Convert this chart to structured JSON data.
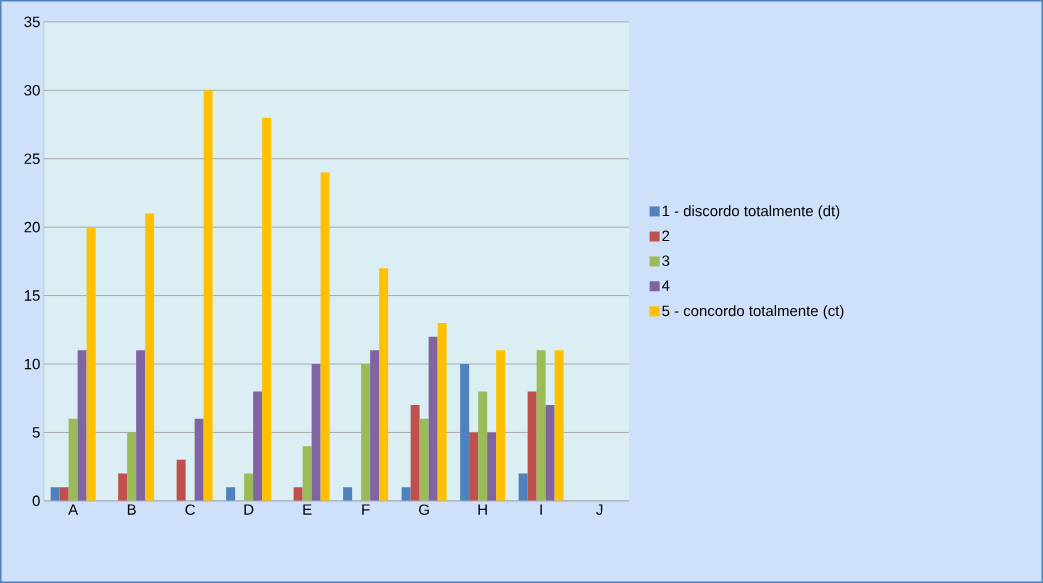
{
  "chart_data": {
    "type": "bar",
    "categories": [
      "A",
      "B",
      "C",
      "D",
      "E",
      "F",
      "G",
      "H",
      "I",
      "J"
    ],
    "series": [
      {
        "name": "1 - discordo totalmente (dt)",
        "color": "#4f81bd",
        "values": [
          1,
          0,
          0,
          1,
          0,
          1,
          1,
          10,
          2,
          0
        ]
      },
      {
        "name": "2",
        "color": "#c0504d",
        "values": [
          1,
          2,
          3,
          0,
          1,
          0,
          7,
          5,
          8,
          0
        ]
      },
      {
        "name": "3",
        "color": "#9bbb59",
        "values": [
          6,
          5,
          0,
          2,
          4,
          10,
          6,
          8,
          11,
          0
        ]
      },
      {
        "name": "4",
        "color": "#8064a2",
        "values": [
          11,
          11,
          6,
          8,
          10,
          11,
          12,
          5,
          7,
          0
        ]
      },
      {
        "name": "5 - concordo totalmente (ct)",
        "color": "#ffc000",
        "values": [
          20,
          21,
          30,
          28,
          24,
          17,
          13,
          11,
          11,
          0
        ]
      }
    ],
    "ylim": [
      0,
      35
    ],
    "yticks": [
      0,
      5,
      10,
      15,
      20,
      25,
      30,
      35
    ],
    "grid": "y",
    "legend": "right"
  }
}
